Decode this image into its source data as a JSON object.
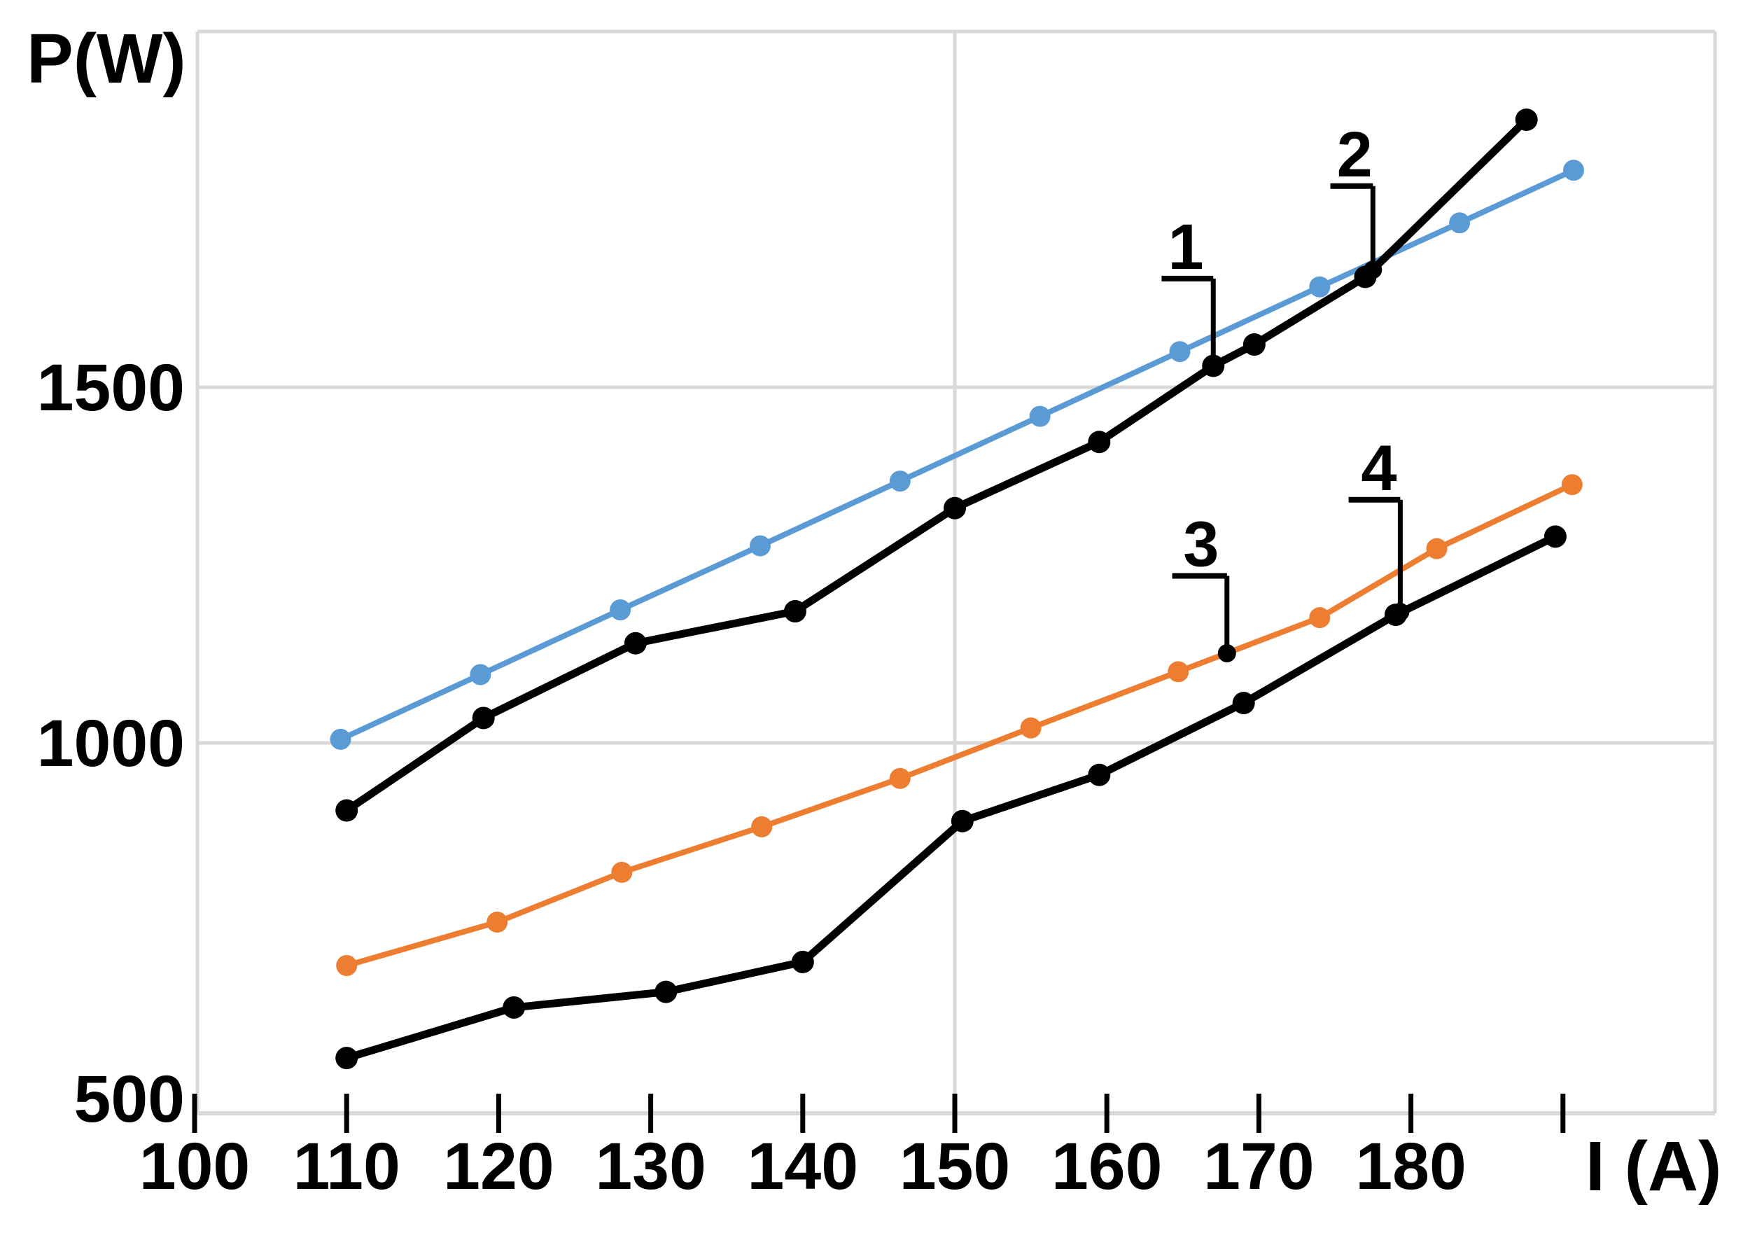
{
  "chart_data": {
    "type": "line",
    "title": "",
    "xlabel": "I (A)",
    "ylabel": "P(W)",
    "xlim": [
      100,
      200
    ],
    "ylim": [
      478,
      2010
    ],
    "x_ticks": [
      100,
      110,
      120,
      130,
      140,
      150,
      160,
      170,
      180,
      190
    ],
    "x_tick_labels": [
      "100",
      "110",
      "120",
      "130",
      "140",
      "150",
      "160",
      "170",
      "180",
      ""
    ],
    "y_ticks": [
      500,
      1000,
      1500
    ],
    "y_tick_labels": [
      "500",
      "1000",
      "1500"
    ],
    "grid_horizontal_at": [
      1000,
      1500,
      2000
    ],
    "grid_vertical_at": [
      150
    ],
    "legend": "none",
    "colors": {
      "blue_series": "#5B9BD5",
      "orange_series": "#ED7D31",
      "black_series": "#000000",
      "gridline": "#D9D9D9",
      "text": "#000000"
    },
    "series": [
      {
        "name": "curve-2-blue",
        "color": "#5B9BD5",
        "marker": "circle",
        "x": [
          109.6,
          118.8,
          128.0,
          137.2,
          146.4,
          155.6,
          164.8,
          174.0,
          183.2,
          190.7
        ],
        "y": [
          1005,
          1096,
          1187,
          1277,
          1368,
          1459,
          1550,
          1641,
          1731,
          1805
        ]
      },
      {
        "name": "curve-3-orange",
        "color": "#ED7D31",
        "marker": "circle",
        "x": [
          110.0,
          119.9,
          128.1,
          137.3,
          146.4,
          155.0,
          164.7,
          174.0,
          181.7,
          190.6
        ],
        "y": [
          687,
          748,
          818,
          882,
          950,
          1021,
          1100,
          1176,
          1273,
          1363
        ]
      },
      {
        "name": "curve-1-black-upper",
        "color": "#000000",
        "marker": "circle",
        "x": [
          110.0,
          119.0,
          129.0,
          139.5,
          150.0,
          159.5,
          167.0,
          169.7,
          177.0,
          187.6
        ],
        "y": [
          905,
          1035,
          1140,
          1185,
          1330,
          1423,
          1530,
          1560,
          1655,
          1876
        ]
      },
      {
        "name": "curve-4-black-lower",
        "color": "#000000",
        "marker": "circle",
        "x": [
          110.0,
          121.0,
          131.0,
          140.0,
          150.5,
          159.5,
          169.0,
          179.0,
          189.5
        ],
        "y": [
          557,
          628,
          650,
          692,
          890,
          955,
          1056,
          1180,
          1290
        ]
      }
    ],
    "callouts": [
      {
        "label": "1",
        "label_i": 165.2,
        "label_p": 1698,
        "underline_left_i": 163.6,
        "target_i": 167.0,
        "target_p": 1530
      },
      {
        "label": "2",
        "label_i": 176.3,
        "label_p": 1828,
        "underline_left_i": 174.7,
        "target_i": 177.5,
        "target_p": 1665
      },
      {
        "label": "3",
        "label_i": 166.2,
        "label_p": 1280,
        "underline_left_i": 164.3,
        "target_i": 167.9,
        "target_p": 1126
      },
      {
        "label": "4",
        "label_i": 177.9,
        "label_p": 1387,
        "underline_left_i": 175.9,
        "target_i": 179.3,
        "target_p": 1184
      }
    ]
  }
}
